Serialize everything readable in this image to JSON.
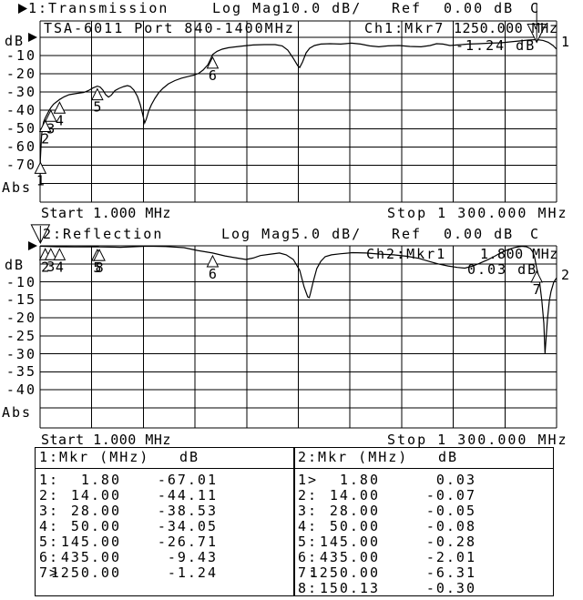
{
  "colors": {
    "fg": "#000000",
    "bg": "#ffffff"
  },
  "ch1": {
    "header": {
      "title": "1:Transmission",
      "format": "Log Mag",
      "scale": "10.0 dB/",
      "ref_label": "Ref",
      "ref_value": "0.00 dB",
      "cal": "C"
    },
    "grid_title": "TSA-6011 Port 840-1400MHz",
    "readout": {
      "label": "Ch1:Mkr7",
      "freq": "1250.000 MHz",
      "value": "-1.24 dB"
    },
    "trace_label": "1",
    "y_unit": "dB",
    "y_labels": [
      "-10",
      "-20",
      "-30",
      "-40",
      "-50",
      "-60",
      "-70"
    ],
    "y_bottom": "Abs",
    "x_start": "Start 1.000 MHz",
    "x_stop": "Stop 1 300.000 MHz"
  },
  "ch2": {
    "header": {
      "title": "2:Reflection",
      "format": "Log Mag",
      "scale": "5.0 dB/",
      "ref_label": "Ref",
      "ref_value": "0.00 dB",
      "cal": "C"
    },
    "readout": {
      "label": "Ch2:Mkr1",
      "freq": "1.800 MHz",
      "value": "0.03 dB"
    },
    "trace_label": "2",
    "y_unit": "dB",
    "y_labels": [
      "-10",
      "-15",
      "-20",
      "-25",
      "-30",
      "-35",
      "-40"
    ],
    "y_bottom": "Abs",
    "x_start": "Start 1.000 MHz",
    "x_stop": "Stop 1 300.000 MHz"
  },
  "tables": [
    {
      "header_mkr": "1:Mkr (MHz)",
      "header_db": "dB",
      "rows": [
        [
          "1:",
          "1.80",
          "-67.01"
        ],
        [
          "2:",
          "14.00",
          "-44.11"
        ],
        [
          "3:",
          "28.00",
          "-38.53"
        ],
        [
          "4:",
          "50.00",
          "-34.05"
        ],
        [
          "5:",
          "145.00",
          "-26.71"
        ],
        [
          "6:",
          "435.00",
          "-9.43"
        ],
        [
          "7>",
          "1250.00",
          "-1.24"
        ]
      ]
    },
    {
      "header_mkr": "2:Mkr (MHz)",
      "header_db": "dB",
      "rows": [
        [
          "1>",
          "1.80",
          "0.03"
        ],
        [
          "2:",
          "14.00",
          "-0.07"
        ],
        [
          "3:",
          "28.00",
          "-0.05"
        ],
        [
          "4:",
          "50.00",
          "-0.08"
        ],
        [
          "5:",
          "145.00",
          "-0.28"
        ],
        [
          "6:",
          "435.00",
          "-2.01"
        ],
        [
          "7:",
          "1250.00",
          "-6.31"
        ],
        [
          "8:",
          "150.13",
          "-0.30"
        ]
      ]
    }
  ],
  "chart_data": [
    {
      "type": "line",
      "title": "1:Transmission",
      "format": "Log Mag",
      "scale_db_per_div": 10.0,
      "ref_db": 0.0,
      "ylabel": "dB",
      "x_range_mhz": [
        1,
        1300
      ],
      "x_start_label": "Start 1.000 MHz",
      "x_stop_label": "Stop 1 300.000 MHz",
      "grid": "on",
      "markers": [
        {
          "n": "1",
          "mhz": 1.8,
          "db": -67.01,
          "active": false
        },
        {
          "n": "2",
          "mhz": 14.0,
          "db": -44.11,
          "active": false
        },
        {
          "n": "3",
          "mhz": 28.0,
          "db": -38.53,
          "active": false
        },
        {
          "n": "4",
          "mhz": 50.0,
          "db": -34.05,
          "active": false
        },
        {
          "n": "5",
          "mhz": 145.0,
          "db": -26.71,
          "active": false
        },
        {
          "n": "6",
          "mhz": 435.0,
          "db": -9.43,
          "active": false
        },
        {
          "n": "7",
          "mhz": 1250.0,
          "db": -1.24,
          "active": true
        }
      ],
      "points": [
        [
          1,
          -81
        ],
        [
          1.8,
          -67
        ],
        [
          3.5,
          -59
        ],
        [
          5,
          -53.5
        ],
        [
          7,
          -49.5
        ],
        [
          10,
          -46.2
        ],
        [
          14,
          -44.11
        ],
        [
          19,
          -42
        ],
        [
          24,
          -40
        ],
        [
          28,
          -38.53
        ],
        [
          35,
          -36.6
        ],
        [
          42,
          -35.4
        ],
        [
          50,
          -34.05
        ],
        [
          61,
          -32.6
        ],
        [
          74,
          -31.4
        ],
        [
          93,
          -30.7
        ],
        [
          111,
          -30.2
        ],
        [
          122,
          -29.2
        ],
        [
          134,
          -27.7
        ],
        [
          145,
          -26.71
        ],
        [
          152,
          -27.2
        ],
        [
          159,
          -28.9
        ],
        [
          166,
          -31.4
        ],
        [
          173,
          -32.7
        ],
        [
          180,
          -31.7
        ],
        [
          189,
          -29.2
        ],
        [
          200,
          -27.9
        ],
        [
          212,
          -26.9
        ],
        [
          221,
          -26.4
        ],
        [
          228,
          -26.9
        ],
        [
          237,
          -28.9
        ],
        [
          246,
          -32.4
        ],
        [
          253,
          -36.9
        ],
        [
          259,
          -42
        ],
        [
          264,
          -46.9
        ],
        [
          268,
          -44.9
        ],
        [
          274,
          -40.4
        ],
        [
          281,
          -36.9
        ],
        [
          290,
          -33.4
        ],
        [
          299,
          -30.4
        ],
        [
          310,
          -27.9
        ],
        [
          324,
          -25.4
        ],
        [
          340,
          -23.7
        ],
        [
          356,
          -22.4
        ],
        [
          374,
          -21.4
        ],
        [
          388,
          -20.7
        ],
        [
          400,
          -19.7
        ],
        [
          411,
          -17.9
        ],
        [
          423,
          -15
        ],
        [
          429,
          -12.3
        ],
        [
          435,
          -9.43
        ],
        [
          446,
          -7.7
        ],
        [
          459,
          -6.5
        ],
        [
          475,
          -5.7
        ],
        [
          494,
          -5.2
        ],
        [
          514,
          -4.7
        ],
        [
          537,
          -4.2
        ],
        [
          565,
          -4
        ],
        [
          592,
          -4
        ],
        [
          610,
          -4.7
        ],
        [
          624,
          -7
        ],
        [
          638,
          -11.5
        ],
        [
          649,
          -15.5
        ],
        [
          654,
          -16.5
        ],
        [
          661,
          -13.5
        ],
        [
          670,
          -8.5
        ],
        [
          679,
          -6
        ],
        [
          691,
          -4.5
        ],
        [
          707,
          -3.7
        ],
        [
          730,
          -3.5
        ],
        [
          757,
          -3.7
        ],
        [
          784,
          -3.2
        ],
        [
          807,
          -3.7
        ],
        [
          830,
          -4.7
        ],
        [
          853,
          -5.2
        ],
        [
          876,
          -4.7
        ],
        [
          904,
          -4.5
        ],
        [
          931,
          -5
        ],
        [
          959,
          -5.2
        ],
        [
          982,
          -4.5
        ],
        [
          998,
          -3.5
        ],
        [
          1014,
          -3.7
        ],
        [
          1032,
          -4.5
        ],
        [
          1050,
          -4.2
        ],
        [
          1078,
          -3.7
        ],
        [
          1105,
          -3.5
        ],
        [
          1133,
          -3.2
        ],
        [
          1160,
          -3
        ],
        [
          1183,
          -2.5
        ],
        [
          1206,
          -2
        ],
        [
          1229,
          -1.5
        ],
        [
          1250,
          -1.24
        ],
        [
          1266,
          -1.7
        ],
        [
          1279,
          -2.7
        ],
        [
          1291,
          -4.5
        ],
        [
          1300,
          -6.5
        ]
      ]
    },
    {
      "type": "line",
      "title": "2:Reflection",
      "format": "Log Mag",
      "scale_db_per_div": 5.0,
      "ref_db": 0.0,
      "ylabel": "dB",
      "x_range_mhz": [
        1,
        1300
      ],
      "x_start_label": "Start 1.000 MHz",
      "x_stop_label": "Stop 1 300.000 MHz",
      "grid": "on",
      "markers": [
        {
          "n": "1",
          "mhz": 1.8,
          "db": 0.03,
          "active": true
        },
        {
          "n": "2",
          "mhz": 14.0,
          "db": -0.07,
          "active": false
        },
        {
          "n": "3",
          "mhz": 28.0,
          "db": -0.05,
          "active": false
        },
        {
          "n": "4",
          "mhz": 50.0,
          "db": -0.08,
          "active": false
        },
        {
          "n": "5",
          "mhz": 145.0,
          "db": -0.28,
          "active": false
        },
        {
          "n": "6",
          "mhz": 435.0,
          "db": -2.01,
          "active": false
        },
        {
          "n": "7",
          "mhz": 1250.0,
          "db": -6.31,
          "active": false
        },
        {
          "n": "8",
          "mhz": 150.13,
          "db": -0.3,
          "active": false
        }
      ],
      "points": [
        [
          1,
          -0.1
        ],
        [
          42,
          -0.25
        ],
        [
          88,
          -0.3
        ],
        [
          145,
          -0.28
        ],
        [
          150.13,
          -0.3
        ],
        [
          203,
          -0.4
        ],
        [
          250,
          -0.2
        ],
        [
          271,
          -0.1
        ],
        [
          317,
          -0.2
        ],
        [
          363,
          -0.5
        ],
        [
          397,
          -1.3
        ],
        [
          435,
          -2.01
        ],
        [
          466,
          -2.8
        ],
        [
          496,
          -3.4
        ],
        [
          519,
          -3.8
        ],
        [
          537,
          -3.4
        ],
        [
          555,
          -2.7
        ],
        [
          581,
          -2.3
        ],
        [
          603,
          -2
        ],
        [
          620,
          -2.5
        ],
        [
          638,
          -3.8
        ],
        [
          654,
          -6.8
        ],
        [
          665,
          -11.4
        ],
        [
          674,
          -14.2
        ],
        [
          678,
          -14.4
        ],
        [
          681,
          -13.2
        ],
        [
          688,
          -9.9
        ],
        [
          697,
          -6.3
        ],
        [
          707,
          -4.3
        ],
        [
          718,
          -3
        ],
        [
          734,
          -2.5
        ],
        [
          757,
          -2.2
        ],
        [
          787,
          -1.9
        ],
        [
          821,
          -2
        ],
        [
          856,
          -2.3
        ],
        [
          890,
          -2.5
        ],
        [
          924,
          -2.9
        ],
        [
          954,
          -3.5
        ],
        [
          982,
          -4.4
        ],
        [
          1004,
          -5.1
        ],
        [
          1027,
          -5.6
        ],
        [
          1050,
          -6
        ],
        [
          1069,
          -6.2
        ],
        [
          1087,
          -5.7
        ],
        [
          1105,
          -4.9
        ],
        [
          1126,
          -3.9
        ],
        [
          1144,
          -2.9
        ],
        [
          1160,
          -1.9
        ],
        [
          1179,
          -1
        ],
        [
          1197,
          -0.4
        ],
        [
          1213,
          -0.13
        ],
        [
          1224,
          -0.25
        ],
        [
          1234,
          -0.76
        ],
        [
          1240,
          -1.65
        ],
        [
          1245,
          -3.3
        ],
        [
          1250,
          -6.31
        ],
        [
          1256,
          -8.9
        ],
        [
          1263,
          -15.2
        ],
        [
          1268,
          -21.5
        ],
        [
          1271,
          -29.9
        ],
        [
          1277,
          -20.3
        ],
        [
          1282,
          -15.2
        ],
        [
          1286,
          -12.7
        ],
        [
          1293,
          -10.1
        ],
        [
          1300,
          -8.9
        ]
      ]
    }
  ]
}
